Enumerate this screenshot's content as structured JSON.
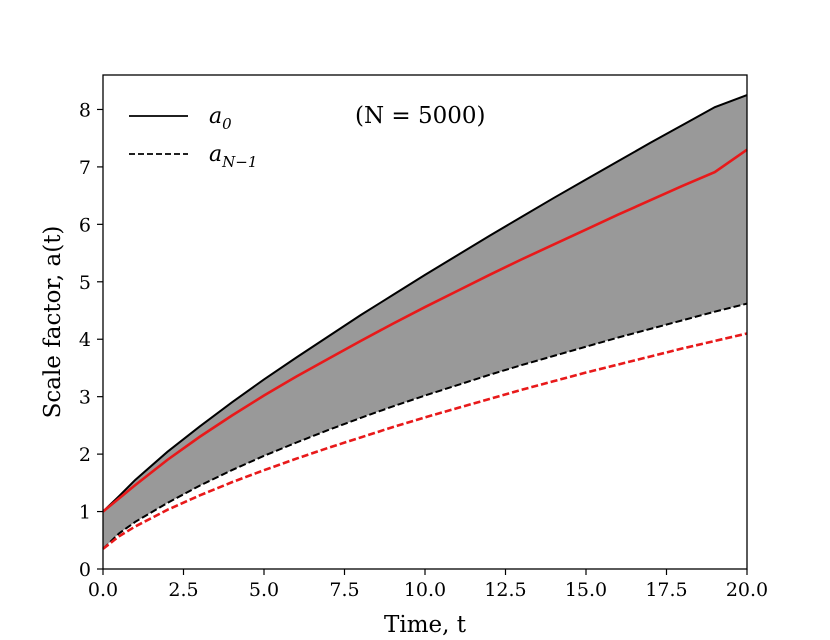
{
  "chart_data": {
    "type": "line",
    "xlabel": "Time, t",
    "ylabel": "Scale factor, a(t)",
    "xlim": [
      0,
      20
    ],
    "ylim": [
      0,
      8.6
    ],
    "xticks": [
      "0.0",
      "2.5",
      "5.0",
      "7.5",
      "10.0",
      "12.5",
      "15.0",
      "17.5",
      "20.0"
    ],
    "yticks": [
      "0",
      "1",
      "2",
      "3",
      "4",
      "5",
      "6",
      "7",
      "8"
    ],
    "annotation": "(N = 5000)",
    "legend_position": "upper-left",
    "grid": false,
    "fill_between": {
      "upper_series": "a_0",
      "lower_series": "a_{N-1}",
      "color": "#999999"
    },
    "series": [
      {
        "name": "a_0",
        "legend_label": "a0",
        "legend_subscript": "0",
        "color": "#000000",
        "style": "solid",
        "x": [
          0,
          0.5,
          1,
          2,
          3,
          4,
          5,
          6,
          7,
          8,
          9,
          10,
          11,
          12,
          13,
          14,
          15,
          16,
          17,
          18,
          19,
          20
        ],
        "values": [
          1.0,
          1.27,
          1.55,
          2.04,
          2.48,
          2.9,
          3.3,
          3.68,
          4.05,
          4.42,
          4.77,
          5.12,
          5.46,
          5.8,
          6.13,
          6.46,
          6.78,
          7.1,
          7.42,
          7.73,
          8.04,
          8.25
        ]
      },
      {
        "name": "a_{N-1}",
        "legend_label": "aN−1",
        "legend_subscript": "N−1",
        "color": "#000000",
        "style": "dashed",
        "x": [
          0,
          0.5,
          1,
          2,
          3,
          4,
          5,
          6,
          7,
          8,
          9,
          10,
          11,
          12,
          13,
          14,
          15,
          16,
          17,
          18,
          19,
          20
        ],
        "values": [
          0.35,
          0.62,
          0.82,
          1.15,
          1.45,
          1.72,
          1.97,
          2.2,
          2.42,
          2.63,
          2.83,
          3.02,
          3.2,
          3.38,
          3.55,
          3.71,
          3.87,
          4.03,
          4.18,
          4.33,
          4.48,
          4.62
        ]
      },
      {
        "color": "#e8191a",
        "style": "solid",
        "x": [
          0,
          0.5,
          1,
          2,
          3,
          4,
          5,
          6,
          7,
          8,
          9,
          10,
          11,
          12,
          13,
          14,
          15,
          16,
          17,
          18,
          19,
          20
        ],
        "values": [
          1.0,
          1.23,
          1.46,
          1.9,
          2.3,
          2.67,
          3.02,
          3.35,
          3.66,
          3.97,
          4.27,
          4.56,
          4.84,
          5.12,
          5.39,
          5.65,
          5.91,
          6.17,
          6.42,
          6.67,
          6.91,
          7.3
        ]
      },
      {
        "color": "#e8191a",
        "style": "dashed",
        "x": [
          0,
          0.5,
          1,
          2,
          3,
          4,
          5,
          6,
          7,
          8,
          9,
          10,
          11,
          12,
          13,
          14,
          15,
          16,
          17,
          18,
          19,
          20
        ],
        "values": [
          0.35,
          0.57,
          0.74,
          1.03,
          1.28,
          1.51,
          1.72,
          1.92,
          2.11,
          2.29,
          2.47,
          2.64,
          2.8,
          2.96,
          3.12,
          3.27,
          3.42,
          3.56,
          3.7,
          3.84,
          3.97,
          4.1
        ]
      }
    ]
  }
}
